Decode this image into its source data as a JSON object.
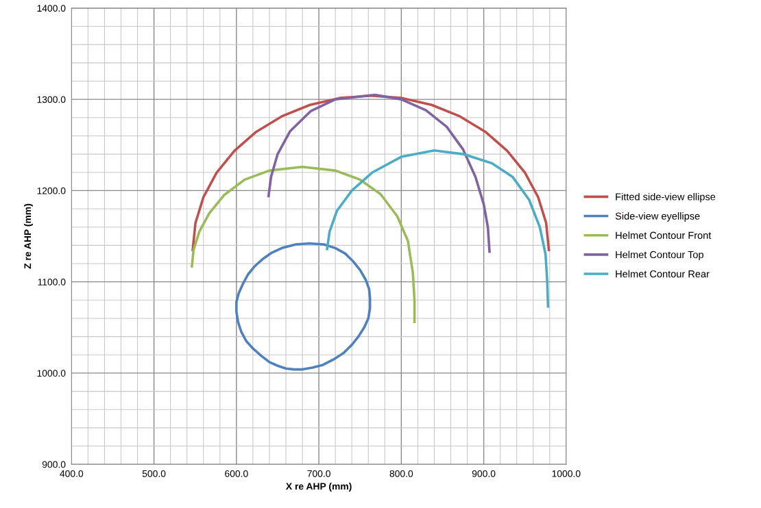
{
  "chart_data": {
    "type": "line",
    "xlabel": "X re AHP (mm)",
    "ylabel": "Z re AHP (mm)",
    "xlim": [
      400,
      1000
    ],
    "ylim": [
      900,
      1400
    ],
    "xticks": [
      {
        "value": 400,
        "label": "400.0"
      },
      {
        "value": 420,
        "label": null
      },
      {
        "value": 440,
        "label": null
      },
      {
        "value": 460,
        "label": null
      },
      {
        "value": 480,
        "label": null
      },
      {
        "value": 500,
        "label": "500.0"
      },
      {
        "value": 520,
        "label": null
      },
      {
        "value": 540,
        "label": null
      },
      {
        "value": 560,
        "label": null
      },
      {
        "value": 580,
        "label": null
      },
      {
        "value": 600,
        "label": "600.0"
      },
      {
        "value": 620,
        "label": null
      },
      {
        "value": 640,
        "label": null
      },
      {
        "value": 660,
        "label": null
      },
      {
        "value": 680,
        "label": null
      },
      {
        "value": 700,
        "label": "700.0"
      },
      {
        "value": 720,
        "label": null
      },
      {
        "value": 740,
        "label": null
      },
      {
        "value": 760,
        "label": null
      },
      {
        "value": 780,
        "label": null
      },
      {
        "value": 800,
        "label": "800.0"
      },
      {
        "value": 820,
        "label": null
      },
      {
        "value": 840,
        "label": null
      },
      {
        "value": 860,
        "label": null
      },
      {
        "value": 880,
        "label": null
      },
      {
        "value": 900,
        "label": "900.0"
      },
      {
        "value": 920,
        "label": null
      },
      {
        "value": 940,
        "label": null
      },
      {
        "value": 960,
        "label": null
      },
      {
        "value": 980,
        "label": null
      },
      {
        "value": 1000,
        "label": "1000.0"
      }
    ],
    "yticks": [
      {
        "value": 900,
        "label": "900.0"
      },
      {
        "value": 920,
        "label": null
      },
      {
        "value": 940,
        "label": null
      },
      {
        "value": 960,
        "label": null
      },
      {
        "value": 980,
        "label": null
      },
      {
        "value": 1000,
        "label": "1000.0"
      },
      {
        "value": 1020,
        "label": null
      },
      {
        "value": 1040,
        "label": null
      },
      {
        "value": 1060,
        "label": null
      },
      {
        "value": 1080,
        "label": null
      },
      {
        "value": 1100,
        "label": "1100.0"
      },
      {
        "value": 1120,
        "label": null
      },
      {
        "value": 1140,
        "label": null
      },
      {
        "value": 1160,
        "label": null
      },
      {
        "value": 1180,
        "label": null
      },
      {
        "value": 1200,
        "label": "1200.0"
      },
      {
        "value": 1220,
        "label": null
      },
      {
        "value": 1240,
        "label": null
      },
      {
        "value": 1260,
        "label": null
      },
      {
        "value": 1280,
        "label": null
      },
      {
        "value": 1300,
        "label": "1300.0"
      },
      {
        "value": 1320,
        "label": null
      },
      {
        "value": 1340,
        "label": null
      },
      {
        "value": 1360,
        "label": null
      },
      {
        "value": 1380,
        "label": null
      },
      {
        "value": 1400,
        "label": "1400.0"
      }
    ],
    "grid": true,
    "legend": "right",
    "marker": "none",
    "line_style": "solid",
    "series": [
      {
        "name": "Fitted side-view ellipse",
        "color": "#c0504d",
        "x": [
          547,
          550.3,
          560,
          575.9,
          597.5,
          624.1,
          655,
          689.1,
          725.4,
          763,
          800.6,
          836.9,
          871,
          901.9,
          928.5,
          950.1,
          966,
          975.7,
          979
        ],
        "values": [
          1135,
          1164.4,
          1192.8,
          1219.5,
          1243.6,
          1264.5,
          1281.4,
          1293.9,
          1301.5,
          1304,
          1301.5,
          1293.9,
          1281.4,
          1264.5,
          1243.6,
          1219.5,
          1192.8,
          1164.4,
          1135
        ]
      },
      {
        "name": "Side-view eyellipse",
        "color": "#4f81bd",
        "x": [
          690,
          706,
          720,
          732,
          742,
          750,
          757,
          761,
          762,
          762,
          760,
          755,
          748,
          740,
          730,
          718,
          705,
          692,
          680,
          670,
          660,
          650,
          640,
          630,
          620,
          612,
          606,
          602,
          600,
          600,
          603,
          608,
          614,
          622,
          632,
          643,
          655,
          672,
          688
        ],
        "values": [
          1142,
          1141,
          1137,
          1131,
          1122,
          1113,
          1102,
          1092,
          1082,
          1071,
          1060,
          1050,
          1040,
          1031,
          1022,
          1015,
          1009,
          1006,
          1004,
          1004,
          1005,
          1008,
          1012,
          1019,
          1027,
          1035,
          1045,
          1056,
          1067,
          1078,
          1088,
          1098,
          1108,
          1117,
          1125,
          1132,
          1137,
          1141,
          1142
        ]
      },
      {
        "name": "Helmet Contour Front",
        "color": "#9bbb59",
        "x": [
          546,
          548,
          555,
          567,
          585,
          610,
          640,
          680,
          720,
          750,
          775,
          795,
          808,
          814,
          816,
          816
        ],
        "values": [
          1117,
          1135,
          1155,
          1175,
          1195,
          1212,
          1222,
          1226,
          1222,
          1212,
          1196,
          1172,
          1145,
          1110,
          1080,
          1056
        ]
      },
      {
        "name": "Helmet Contour Top",
        "color": "#8064a2",
        "x": [
          639,
          642,
          650,
          665,
          690,
          720,
          768,
          800,
          830,
          855,
          875,
          890,
          900,
          905,
          907
        ],
        "values": [
          1194,
          1215,
          1240,
          1265,
          1287,
          1300,
          1305,
          1300,
          1288,
          1270,
          1245,
          1215,
          1185,
          1160,
          1133
        ]
      },
      {
        "name": "Helmet Contour Rear",
        "color": "#4bacc6",
        "x": [
          710,
          713,
          722,
          740,
          765,
          800,
          840,
          875,
          910,
          935,
          955,
          968,
          975,
          977,
          978
        ],
        "values": [
          1136,
          1155,
          1178,
          1200,
          1220,
          1237,
          1244,
          1240,
          1230,
          1215,
          1190,
          1160,
          1130,
          1100,
          1073
        ]
      }
    ]
  }
}
